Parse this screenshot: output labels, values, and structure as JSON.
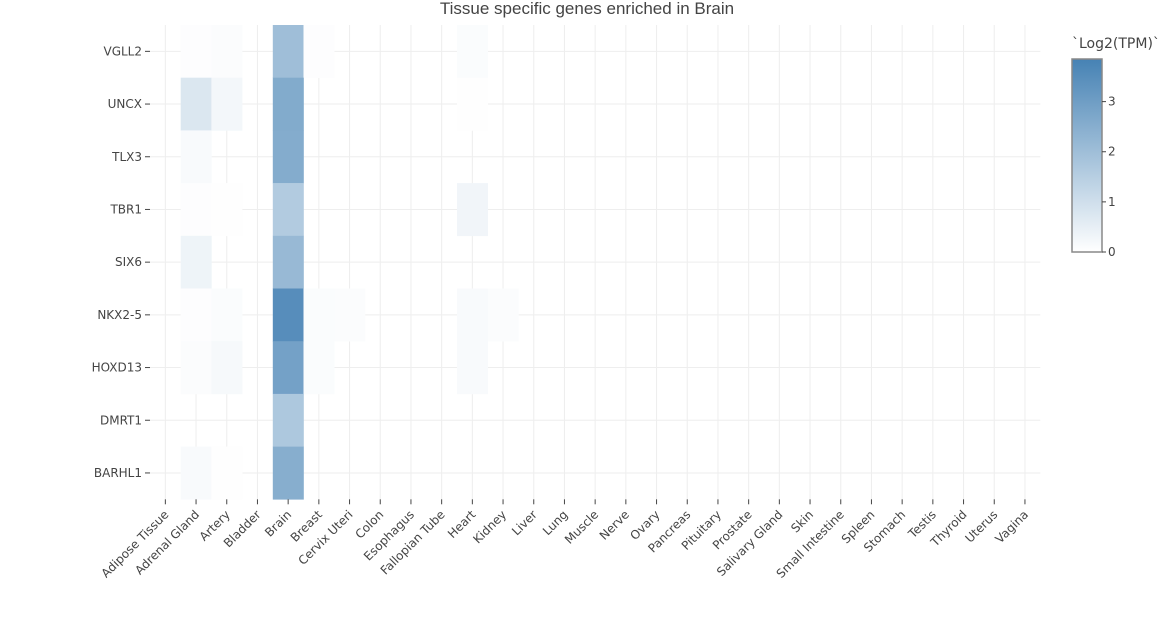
{
  "chart_data": {
    "type": "heatmap",
    "title": "Tissue specific genes enriched in Brain",
    "colorbar_title": "`Log2(TPM)`",
    "colorbar_ticks": [
      "0",
      "1",
      "2",
      "3"
    ],
    "colorscale": {
      "low": "#ffffff",
      "high": "#4682b4"
    },
    "zmin": 0,
    "zmax": 3.85,
    "x": [
      "Adipose Tissue",
      "Adrenal Gland",
      "Artery",
      "Bladder",
      "Brain",
      "Breast",
      "Cervix Uteri",
      "Colon",
      "Esophagus",
      "Fallopian Tube",
      "Heart",
      "Kidney",
      "Liver",
      "Lung",
      "Muscle",
      "Nerve",
      "Ovary",
      "Pancreas",
      "Pituitary",
      "Prostate",
      "Salivary Gland",
      "Skin",
      "Small Intestine",
      "Spleen",
      "Stomach",
      "Testis",
      "Thyroid",
      "Uterus",
      "Vagina"
    ],
    "y": [
      "VGLL2",
      "UNCX",
      "TLX3",
      "TBR1",
      "SIX6",
      "NKX2-5",
      "HOXD13",
      "DMRT1",
      "BARHL1"
    ],
    "z": [
      [
        null,
        0.05,
        0.08,
        null,
        2.0,
        0.05,
        null,
        null,
        null,
        null,
        0.1,
        null,
        null,
        null,
        null,
        null,
        null,
        null,
        null,
        null,
        null,
        null,
        null,
        null,
        null,
        null,
        null,
        null,
        null
      ],
      [
        null,
        0.75,
        0.25,
        null,
        2.6,
        null,
        null,
        null,
        null,
        null,
        0.03,
        null,
        null,
        null,
        null,
        null,
        null,
        null,
        null,
        null,
        null,
        null,
        null,
        null,
        null,
        null,
        null,
        null,
        null
      ],
      [
        null,
        0.15,
        null,
        null,
        2.55,
        null,
        null,
        null,
        null,
        null,
        null,
        null,
        null,
        null,
        null,
        null,
        null,
        null,
        null,
        null,
        null,
        null,
        null,
        null,
        null,
        null,
        null,
        null,
        null
      ],
      [
        null,
        0.05,
        0.03,
        null,
        1.6,
        null,
        null,
        null,
        null,
        null,
        0.3,
        null,
        null,
        null,
        null,
        null,
        null,
        null,
        null,
        null,
        null,
        null,
        null,
        null,
        null,
        null,
        null,
        null,
        null
      ],
      [
        null,
        0.35,
        null,
        null,
        2.15,
        null,
        null,
        null,
        null,
        null,
        null,
        null,
        null,
        null,
        null,
        null,
        null,
        null,
        null,
        null,
        null,
        null,
        null,
        null,
        null,
        null,
        null,
        null,
        null
      ],
      [
        null,
        0.05,
        0.1,
        null,
        3.5,
        0.1,
        0.08,
        null,
        null,
        null,
        0.15,
        0.08,
        null,
        null,
        null,
        null,
        null,
        null,
        null,
        null,
        null,
        null,
        null,
        null,
        null,
        null,
        null,
        null,
        null
      ],
      [
        null,
        0.08,
        0.18,
        null,
        2.9,
        0.1,
        null,
        null,
        null,
        null,
        0.15,
        null,
        null,
        null,
        null,
        null,
        null,
        null,
        null,
        null,
        null,
        null,
        null,
        null,
        null,
        null,
        null,
        null,
        null
      ],
      [
        null,
        null,
        null,
        null,
        1.7,
        null,
        null,
        null,
        null,
        null,
        null,
        null,
        null,
        null,
        null,
        null,
        null,
        null,
        null,
        null,
        null,
        null,
        null,
        null,
        null,
        null,
        null,
        null,
        null
      ],
      [
        null,
        0.15,
        0.03,
        null,
        2.5,
        null,
        null,
        null,
        null,
        null,
        null,
        null,
        null,
        null,
        null,
        null,
        null,
        null,
        null,
        null,
        null,
        null,
        null,
        null,
        null,
        null,
        null,
        null,
        null
      ]
    ]
  }
}
